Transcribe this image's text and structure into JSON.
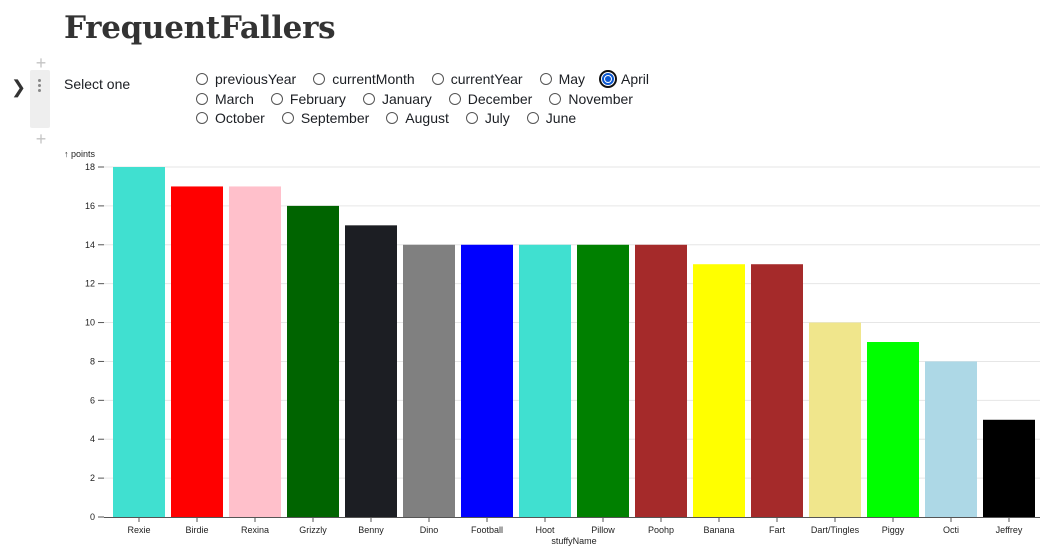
{
  "page": {
    "title": "FrequentFallers"
  },
  "form": {
    "label": "Select one",
    "options": [
      [
        "previousYear",
        "currentMonth",
        "currentYear",
        "May",
        "April"
      ],
      [
        "March",
        "February",
        "January",
        "December",
        "November"
      ],
      [
        "October",
        "September",
        "August",
        "July",
        "June"
      ]
    ],
    "selected": "April"
  },
  "icons": {
    "expand": "chevron-right-icon",
    "drag": "drag-handle-icon",
    "add": "plus-icon"
  },
  "chart_data": {
    "type": "bar",
    "title": "",
    "xlabel": "stuffyName",
    "ylabel": "↑ points",
    "ylim": [
      0,
      18
    ],
    "yticks": [
      0,
      2,
      4,
      6,
      8,
      10,
      12,
      14,
      16,
      18
    ],
    "grid": true,
    "categories": [
      "Rexie",
      "Birdie",
      "Rexina",
      "Grizzly",
      "Benny",
      "Dino",
      "Football",
      "Hoot",
      "Pillow",
      "Poohp",
      "Banana",
      "Fart",
      "Dart/Tingles",
      "Piggy",
      "Octi",
      "Jeffrey"
    ],
    "values": [
      18,
      17,
      17,
      16,
      15,
      14,
      14,
      14,
      14,
      14,
      13,
      13,
      10,
      9,
      8,
      5
    ],
    "colors": [
      "#40e0d0",
      "#ff0000",
      "#ffc0cb",
      "#006400",
      "#1c1e23",
      "#808080",
      "#0000ff",
      "#40e0d0",
      "#008000",
      "#a52a2a",
      "#ffff00",
      "#a52a2a",
      "#f0e68c",
      "#00ff00",
      "#add8e6",
      "#000000"
    ]
  }
}
